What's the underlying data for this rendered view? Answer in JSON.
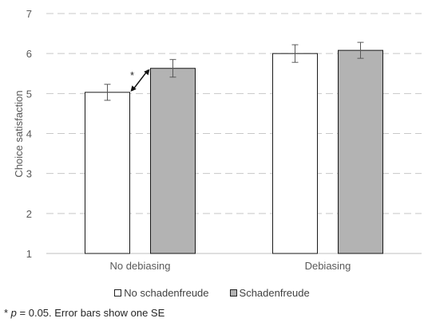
{
  "chart_data": {
    "type": "bar",
    "title": "",
    "xlabel": "",
    "ylabel": "Choice satisfaction",
    "ylim": [
      1,
      7
    ],
    "yticks": [
      1,
      2,
      3,
      4,
      5,
      6,
      7
    ],
    "grid": true,
    "legend_position": "bottom",
    "categories": [
      "No debiasing",
      "Debiasing"
    ],
    "series": [
      {
        "name": "No schadenfreude",
        "values": [
          5.03,
          6.0
        ],
        "errors": [
          0.2,
          0.22
        ],
        "color": "#ffffff"
      },
      {
        "name": "Schadenfreude",
        "values": [
          5.63,
          6.08
        ],
        "errors": [
          0.22,
          0.2
        ],
        "color": "#b3b3b3"
      }
    ],
    "annotations": [
      {
        "text": "*",
        "category": "No debiasing",
        "type": "significance-arrow"
      }
    ]
  },
  "footnote": {
    "star": "* ",
    "p": "p",
    "rest": " = 0.05. Error bars show one SE"
  }
}
